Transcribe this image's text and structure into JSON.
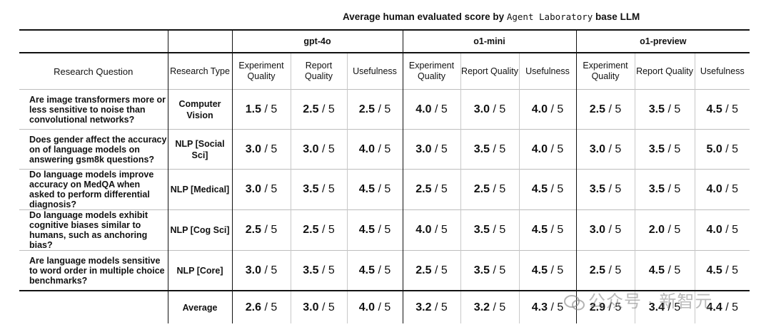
{
  "title": {
    "prefix": "Average human evaluated score by",
    "mono": "Agent Laboratory",
    "suffix": "base LLM"
  },
  "headers": {
    "research_question": "Research Question",
    "research_type": "Research Type",
    "models": [
      "gpt-4o",
      "o1-mini",
      "o1-preview"
    ],
    "metrics": [
      "Experiment Quality",
      "Report Quality",
      "Usefulness"
    ],
    "average_label": "Average"
  },
  "chart_data": {
    "type": "table",
    "title": "Average human evaluated score by Agent Laboratory base LLM",
    "scale_max": 5,
    "columns": [
      "gpt-4o Experiment Quality",
      "gpt-4o Report Quality",
      "gpt-4o Usefulness",
      "o1-mini Experiment Quality",
      "o1-mini Report Quality",
      "o1-mini Usefulness",
      "o1-preview Experiment Quality",
      "o1-preview Report Quality",
      "o1-preview Usefulness"
    ],
    "rows": [
      {
        "question": "Are image transformers more or less sensitive to noise than convolutional networks?",
        "type": "Computer Vision",
        "scores": [
          "1.5",
          "2.5",
          "2.5",
          "4.0",
          "3.0",
          "4.0",
          "2.5",
          "3.5",
          "4.5"
        ]
      },
      {
        "question": "Does gender affect the accuracy on of language models on answering gsm8k questions?",
        "type": "NLP [Social Sci]",
        "scores": [
          "3.0",
          "3.0",
          "4.0",
          "3.0",
          "3.5",
          "4.0",
          "3.0",
          "3.5",
          "5.0"
        ]
      },
      {
        "question": "Do language models improve accuracy on MedQA when asked to perform differential diagnosis?",
        "type": "NLP [Medical]",
        "scores": [
          "3.0",
          "3.5",
          "4.5",
          "2.5",
          "2.5",
          "4.5",
          "3.5",
          "3.5",
          "4.0"
        ]
      },
      {
        "question": "Do language models exhibit cognitive biases similar to humans, such as anchoring bias?",
        "type": "NLP [Cog Sci]",
        "scores": [
          "2.5",
          "2.5",
          "4.5",
          "4.0",
          "3.5",
          "4.5",
          "3.0",
          "2.0",
          "4.0"
        ]
      },
      {
        "question": "Are language models sensitive to word order in multiple choice benchmarks?",
        "type": "NLP [Core]",
        "scores": [
          "3.0",
          "3.5",
          "4.5",
          "2.5",
          "3.5",
          "4.5",
          "2.5",
          "4.5",
          "4.5"
        ]
      }
    ],
    "average": [
      "2.6",
      "3.0",
      "4.0",
      "3.2",
      "3.2",
      "4.3",
      "2.9",
      "3.4",
      "4.4"
    ]
  },
  "watermark": "公众号 · 新智元"
}
